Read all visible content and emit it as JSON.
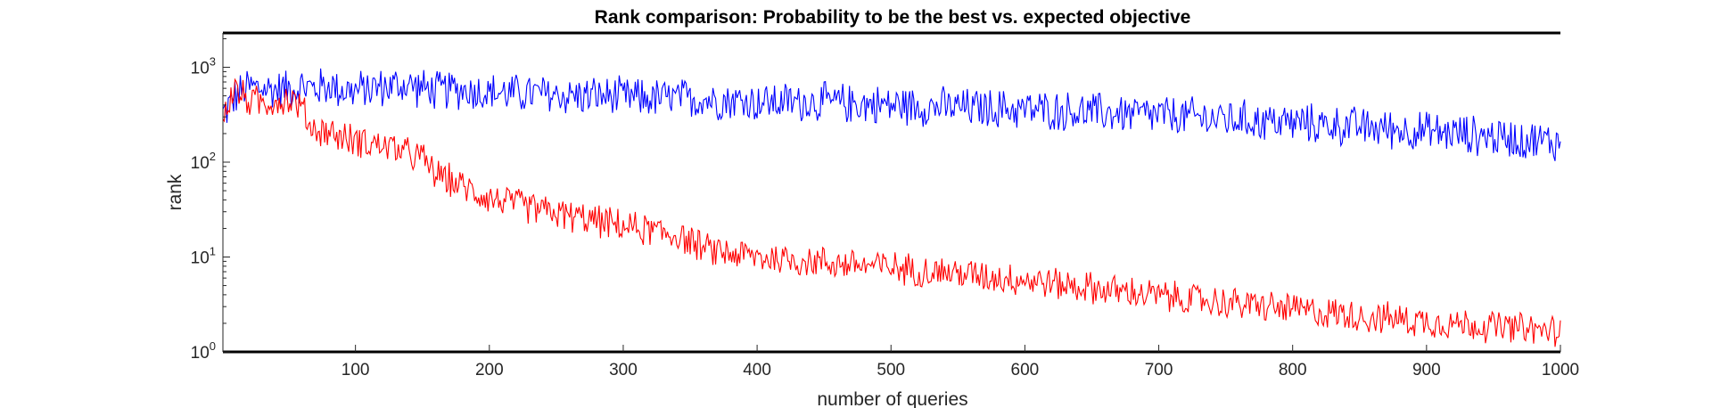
{
  "chart_data": {
    "type": "line",
    "title": "Rank comparison: Probability to be the best vs. expected objective",
    "xlabel": "number of queries",
    "ylabel": "rank",
    "xlim": [
      1,
      1000
    ],
    "ylim": [
      1,
      2300
    ],
    "yscale": "log",
    "x_ticks": [
      100,
      200,
      300,
      400,
      500,
      600,
      700,
      800,
      900,
      1000
    ],
    "x_tick_labels": [
      "100",
      "200",
      "300",
      "400",
      "500",
      "600",
      "700",
      "800",
      "900",
      "1000"
    ],
    "y_ticks": [
      {
        "value": 1,
        "base": "10",
        "exp": "0"
      },
      {
        "value": 10,
        "base": "10",
        "exp": "1"
      },
      {
        "value": 100,
        "base": "10",
        "exp": "2"
      },
      {
        "value": 1000,
        "base": "10",
        "exp": "3"
      }
    ],
    "grid": false,
    "series": [
      {
        "color": "#0000ff",
        "x": [
          1,
          10,
          20,
          30,
          40,
          50,
          60,
          70,
          80,
          90,
          100,
          110,
          120,
          130,
          140,
          150,
          160,
          170,
          180,
          190,
          200,
          220,
          240,
          260,
          280,
          300,
          320,
          340,
          360,
          380,
          400,
          420,
          440,
          460,
          480,
          500,
          520,
          540,
          560,
          580,
          600,
          620,
          640,
          660,
          680,
          700,
          720,
          740,
          760,
          780,
          800,
          820,
          840,
          860,
          880,
          900,
          920,
          940,
          960,
          980,
          1000
        ],
        "y": [
          320,
          480,
          620,
          600,
          580,
          600,
          620,
          600,
          640,
          580,
          560,
          600,
          610,
          640,
          650,
          600,
          560,
          580,
          580,
          560,
          540,
          530,
          520,
          500,
          500,
          480,
          470,
          470,
          460,
          450,
          430,
          430,
          430,
          420,
          410,
          400,
          390,
          380,
          370,
          365,
          360,
          350,
          340,
          330,
          320,
          310,
          300,
          290,
          280,
          270,
          260,
          250,
          240,
          230,
          220,
          210,
          200,
          190,
          180,
          170,
          160
        ]
      },
      {
        "color": "#ff0000",
        "x": [
          1,
          5,
          10,
          15,
          20,
          30,
          40,
          50,
          55,
          60,
          65,
          70,
          80,
          90,
          100,
          110,
          120,
          130,
          140,
          150,
          160,
          170,
          180,
          190,
          200,
          220,
          240,
          260,
          280,
          300,
          320,
          340,
          350,
          360,
          380,
          400,
          420,
          440,
          460,
          480,
          500,
          520,
          540,
          560,
          580,
          600,
          620,
          640,
          660,
          680,
          700,
          720,
          740,
          760,
          780,
          800,
          820,
          840,
          860,
          880,
          900,
          920,
          940,
          960,
          980,
          1000
        ],
        "y": [
          280,
          420,
          600,
          500,
          450,
          420,
          440,
          460,
          430,
          380,
          250,
          220,
          210,
          180,
          170,
          160,
          150,
          140,
          120,
          110,
          75,
          65,
          55,
          48,
          42,
          36,
          31,
          27,
          24,
          21,
          19,
          17,
          15,
          12,
          11,
          10,
          9.5,
          9,
          8.6,
          8.2,
          7.8,
          7.3,
          6.9,
          6.5,
          6.1,
          5.8,
          5.3,
          4.9,
          4.5,
          4.2,
          3.9,
          3.6,
          3.4,
          3.2,
          3.0,
          2.8,
          2.6,
          2.5,
          2.3,
          2.2,
          2.1,
          2.0,
          1.9,
          1.8,
          1.7,
          1.65
        ]
      }
    ]
  }
}
